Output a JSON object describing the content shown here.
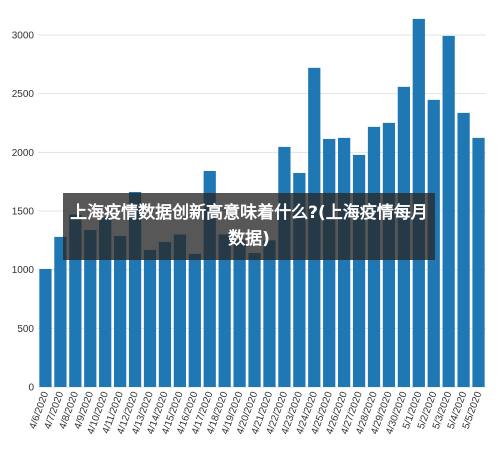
{
  "chart_data": {
    "type": "bar",
    "title": "上海疫情数据创新高意味着什么?(上海疫情每月数据)",
    "categories": [
      "4/6/2020",
      "4/7/2020",
      "4/8/2020",
      "4/9/2020",
      "4/10/2020",
      "4/11/2020",
      "4/12/2020",
      "4/13/2020",
      "4/14/2020",
      "4/15/2020",
      "4/16/2020",
      "4/17/2020",
      "4/18/2020",
      "4/19/2020",
      "4/20/2020",
      "4/21/2020",
      "4/22/2020",
      "4/23/2020",
      "4/24/2020",
      "4/25/2020",
      "4/26/2020",
      "4/27/2020",
      "4/28/2020",
      "4/29/2020",
      "4/30/2020",
      "5/1/2020",
      "5/2/2020",
      "5/3/2020",
      "5/4/2020",
      "5/5/2020"
    ],
    "values": [
      1006,
      1279,
      1470,
      1338,
      1450,
      1287,
      1662,
      1168,
      1236,
      1300,
      1134,
      1841,
      1300,
      1250,
      1142,
      1250,
      2046,
      1824,
      2720,
      2114,
      2123,
      1978,
      2217,
      2251,
      2558,
      3137,
      2447,
      2992,
      2336,
      2123
    ],
    "color": "#1f77b4",
    "ylim": [
      0,
      3200
    ],
    "yticks": [
      0,
      500,
      1000,
      1500,
      2000,
      2500,
      3000
    ],
    "grid": true
  }
}
